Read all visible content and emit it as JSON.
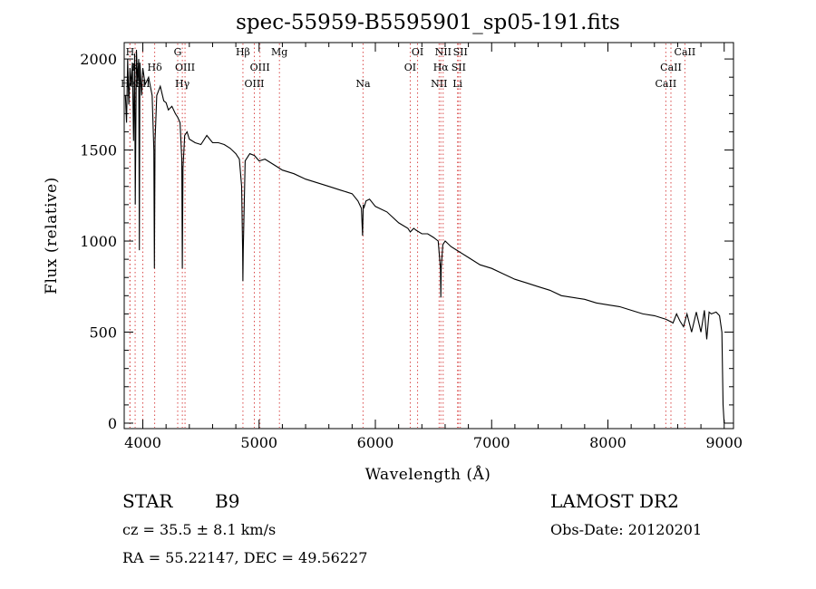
{
  "chart_data": {
    "type": "line",
    "title": "spec-55959-B5595901_sp05-191.fits",
    "xlabel": "Wavelength (Å)",
    "ylabel": "Flux (relative)",
    "xlim": [
      3840,
      9080
    ],
    "ylim": [
      -30,
      2090
    ],
    "x_ticks": [
      4000,
      5000,
      6000,
      7000,
      8000,
      9000
    ],
    "y_ticks": [
      0,
      500,
      1000,
      1500,
      2000
    ],
    "grid": false,
    "series": [
      {
        "x": [
          3850,
          3860,
          3870,
          3880,
          3890,
          3900,
          3910,
          3920,
          3930,
          3935,
          3945,
          3955,
          3965,
          3970,
          3975,
          3990,
          4000,
          4020,
          4050,
          4080,
          4095,
          4100,
          4105,
          4120,
          4150,
          4180,
          4200,
          4220,
          4250,
          4280,
          4300,
          4320,
          4335,
          4340,
          4345,
          4360,
          4380,
          4400,
          4450,
          4500,
          4550,
          4600,
          4650,
          4700,
          4750,
          4800,
          4830,
          4850,
          4858,
          4861,
          4864,
          4880,
          4920,
          4960,
          5000,
          5050,
          5100,
          5150,
          5200,
          5300,
          5400,
          5500,
          5600,
          5700,
          5800,
          5850,
          5880,
          5890,
          5896,
          5900,
          5920,
          5950,
          6000,
          6100,
          6200,
          6280,
          6300,
          6330,
          6350,
          6400,
          6450,
          6500,
          6540,
          6560,
          6563,
          6566,
          6580,
          6600,
          6650,
          6700,
          6800,
          6900,
          7000,
          7100,
          7200,
          7300,
          7400,
          7500,
          7600,
          7700,
          7800,
          7900,
          8000,
          8100,
          8200,
          8300,
          8400,
          8450,
          8500,
          8530,
          8560,
          8590,
          8620,
          8650,
          8680,
          8720,
          8760,
          8800,
          8830,
          8850,
          8870,
          8890,
          8930,
          8960,
          8980,
          8990,
          9000
        ],
        "y": [
          1800,
          1650,
          2000,
          1750,
          1950,
          1850,
          1980,
          1550,
          2030,
          1200,
          2050,
          1880,
          2000,
          950,
          1980,
          1800,
          1950,
          1860,
          1900,
          1800,
          1500,
          850,
          1550,
          1800,
          1850,
          1770,
          1760,
          1720,
          1740,
          1700,
          1680,
          1650,
          1450,
          850,
          1400,
          1580,
          1600,
          1560,
          1540,
          1530,
          1580,
          1540,
          1540,
          1530,
          1510,
          1480,
          1450,
          1300,
          950,
          780,
          950,
          1440,
          1480,
          1470,
          1440,
          1450,
          1430,
          1410,
          1390,
          1370,
          1340,
          1320,
          1300,
          1280,
          1260,
          1220,
          1180,
          1030,
          1200,
          1180,
          1220,
          1230,
          1190,
          1160,
          1100,
          1070,
          1050,
          1070,
          1060,
          1040,
          1040,
          1020,
          1000,
          850,
          690,
          850,
          980,
          1000,
          970,
          950,
          910,
          870,
          850,
          820,
          790,
          770,
          750,
          730,
          700,
          690,
          680,
          660,
          650,
          640,
          620,
          600,
          590,
          580,
          570,
          560,
          550,
          600,
          560,
          530,
          600,
          500,
          610,
          500,
          620,
          460,
          610,
          600,
          610,
          590,
          500,
          100,
          0
        ]
      }
    ],
    "line_markers": [
      {
        "label": "HeI",
        "x": 3889,
        "row": 3
      },
      {
        "label": "H",
        "x": 3890,
        "row": 0
      },
      {
        "label": "K",
        "x": 3934,
        "row": 1
      },
      {
        "label": "SII",
        "x": 4000,
        "row": 3
      },
      {
        "label": "Hδ",
        "x": 4102,
        "row": 1
      },
      {
        "label": "G",
        "x": 4300,
        "row": 0
      },
      {
        "label": "OIII",
        "x": 4363,
        "row": 1
      },
      {
        "label": "Hγ",
        "x": 4340,
        "row": 3
      },
      {
        "label": "Hβ",
        "x": 4861,
        "row": 0
      },
      {
        "label": "OIII",
        "x": 4959,
        "row": 3
      },
      {
        "label": "OIII",
        "x": 5007,
        "row": 1
      },
      {
        "label": "Mg",
        "x": 5175,
        "row": 0
      },
      {
        "label": "Na",
        "x": 5894,
        "row": 3
      },
      {
        "label": "OI",
        "x": 6300,
        "row": 2
      },
      {
        "label": "OI",
        "x": 6363,
        "row": 0
      },
      {
        "label": "NII",
        "x": 6548,
        "row": 3
      },
      {
        "label": "Hα",
        "x": 6563,
        "row": 2
      },
      {
        "label": "NII",
        "x": 6583,
        "row": 0
      },
      {
        "label": "SII",
        "x": 6716,
        "row": 2
      },
      {
        "label": "SII",
        "x": 6731,
        "row": 0
      },
      {
        "label": "Li",
        "x": 6707,
        "row": 3
      },
      {
        "label": "CaII",
        "x": 8498,
        "row": 3
      },
      {
        "label": "CaII",
        "x": 8542,
        "row": 2
      },
      {
        "label": "CaII",
        "x": 8662,
        "row": 0
      }
    ]
  },
  "footer": {
    "object_type": "STAR",
    "subclass": "B9",
    "cz": "cz = 35.5 ± 8.1 km/s",
    "coords": "RA =  55.22147, DEC =  49.56227",
    "survey": "LAMOST DR2",
    "obs_date": "Obs-Date: 20120201"
  },
  "colors": {
    "spectrum": "#000000",
    "line_marker": "#d94a4a",
    "axes": "#000000"
  }
}
